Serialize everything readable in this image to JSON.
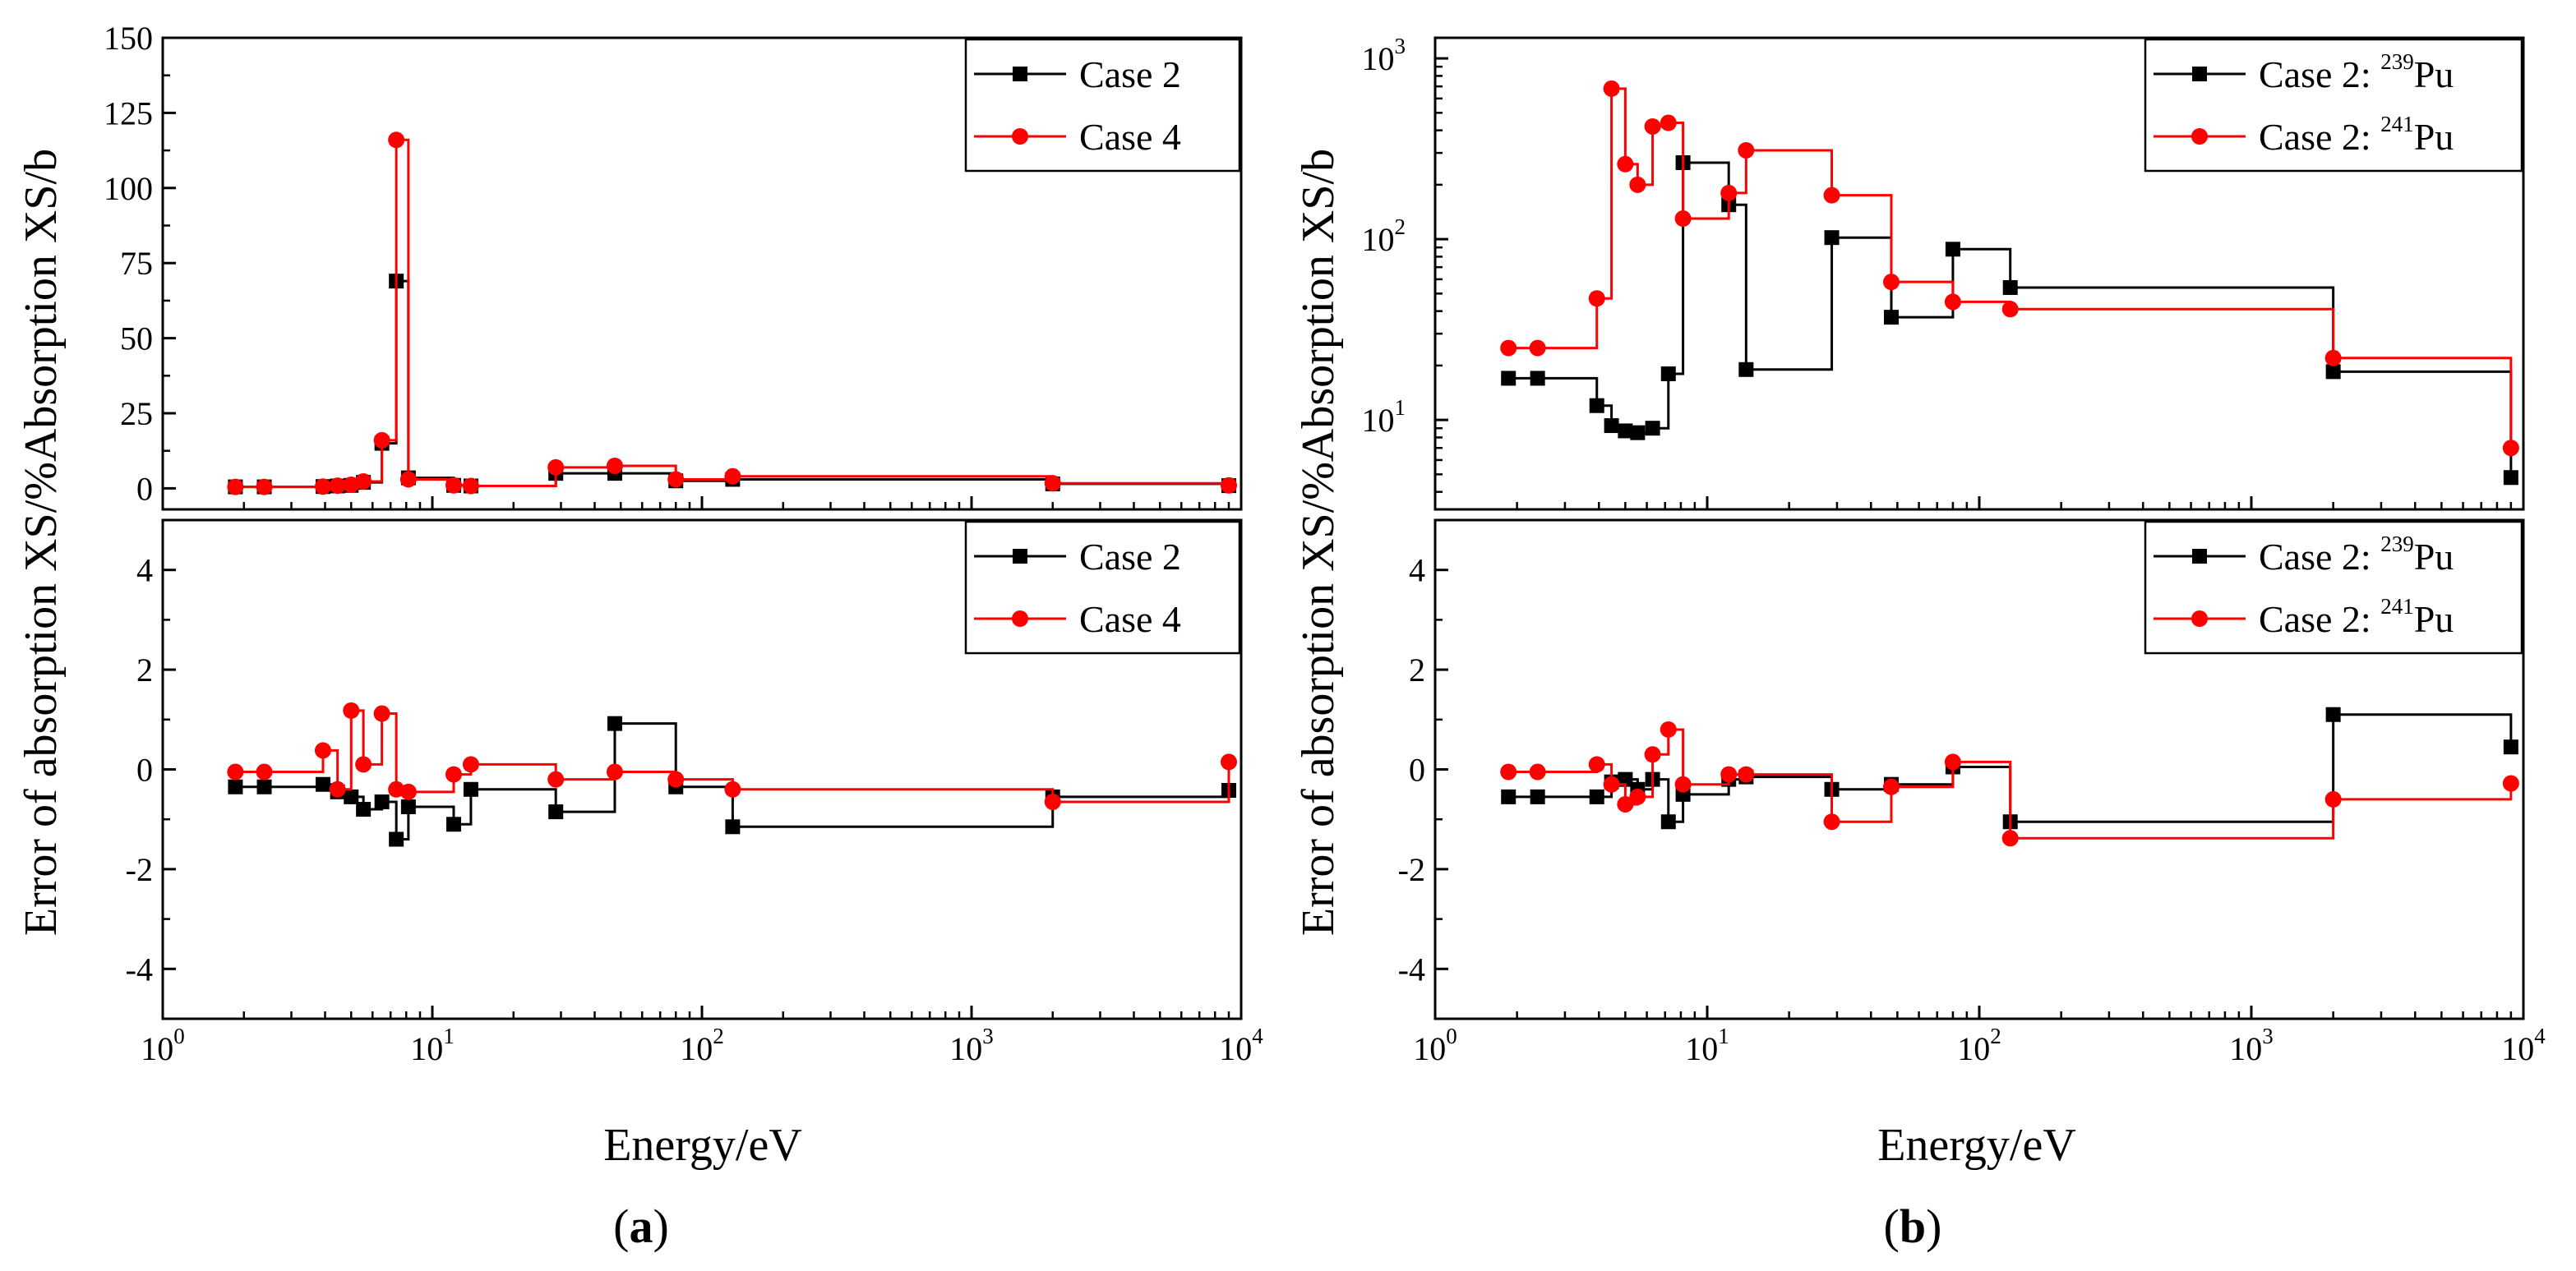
{
  "figure": {
    "ylabel_top": "Absorption XS/b",
    "ylabel_separator": "/%",
    "ylabel_bottom": "Error of absorption XS",
    "xlabel": "Energy/eV",
    "labels": {
      "a": {
        "open": "(",
        "letter": "a",
        "close": ")"
      },
      "b": {
        "open": "(",
        "letter": "b",
        "close": ")"
      }
    },
    "x_ticks": [
      {
        "base": "10",
        "exp": "0"
      },
      {
        "base": "10",
        "exp": "1"
      },
      {
        "base": "10",
        "exp": "2"
      },
      {
        "base": "10",
        "exp": "3"
      },
      {
        "base": "10",
        "exp": "4"
      }
    ]
  },
  "colors": {
    "black": "#000000",
    "red": "#ff0000"
  },
  "chart_data": [
    {
      "id": "a-top",
      "type": "line",
      "xscale": "log",
      "xlim": [
        1,
        10000
      ],
      "ylim": [
        -7,
        150
      ],
      "yticks": [
        0,
        25,
        50,
        75,
        100,
        125,
        150
      ],
      "yticklabels": [
        "0",
        "25",
        "50",
        "75",
        "100",
        "125",
        "150"
      ],
      "legend": "top-right",
      "series": [
        {
          "name": "Case 2",
          "color": "black",
          "marker": "square",
          "x": [
            1.86,
            2.38,
            3.93,
            4.45,
            5.0,
            5.55,
            6.5,
            7.35,
            8.15,
            12.0,
            13.9,
            28.7,
            47.5,
            80.0,
            130.0,
            2000.0,
            9000.0
          ],
          "y": [
            0.5,
            0.5,
            0.6,
            0.8,
            1.0,
            2.0,
            15,
            69,
            3.5,
            1.0,
            0.8,
            5.0,
            5.0,
            2.5,
            3.0,
            1.5,
            0.9
          ]
        },
        {
          "name": "Case 4",
          "color": "red",
          "marker": "circle",
          "x": [
            1.86,
            2.38,
            3.93,
            4.45,
            5.0,
            5.55,
            6.5,
            7.35,
            8.15,
            12.0,
            13.9,
            28.7,
            47.5,
            80.0,
            130.0,
            2000.0,
            9000.0
          ],
          "y": [
            0.5,
            0.5,
            0.6,
            0.9,
            1.2,
            2.3,
            16,
            116,
            3.0,
            1.0,
            0.8,
            7.0,
            7.5,
            3.0,
            4.0,
            1.7,
            1.0
          ]
        }
      ]
    },
    {
      "id": "a-bottom",
      "type": "line",
      "xscale": "log",
      "xlim": [
        1,
        10000
      ],
      "ylim": [
        -5,
        5
      ],
      "yticks": [
        -4,
        -2,
        0,
        2,
        4
      ],
      "yticklabels": [
        "-4",
        "-2",
        "0",
        "2",
        "4"
      ],
      "legend": "top-right",
      "series": [
        {
          "name": "Case 2",
          "color": "black",
          "marker": "square",
          "x": [
            1.86,
            2.38,
            3.93,
            4.45,
            5.0,
            5.55,
            6.5,
            7.35,
            8.15,
            12.0,
            13.9,
            28.7,
            47.5,
            80.0,
            130.0,
            2000.0,
            9000.0
          ],
          "y": [
            -0.35,
            -0.35,
            -0.3,
            -0.45,
            -0.55,
            -0.8,
            -0.65,
            -1.4,
            -0.75,
            -1.1,
            -0.4,
            -0.85,
            0.92,
            -0.35,
            -1.15,
            -0.55,
            -0.42
          ]
        },
        {
          "name": "Case 4",
          "color": "red",
          "marker": "circle",
          "x": [
            1.86,
            2.38,
            3.93,
            4.45,
            5.0,
            5.55,
            6.5,
            7.35,
            8.15,
            12.0,
            13.9,
            28.7,
            47.5,
            80.0,
            130.0,
            2000.0,
            9000.0
          ],
          "y": [
            -0.05,
            -0.05,
            0.38,
            -0.4,
            1.18,
            0.1,
            1.12,
            -0.4,
            -0.45,
            -0.1,
            0.1,
            -0.2,
            -0.05,
            -0.2,
            -0.4,
            -0.65,
            0.15
          ]
        }
      ]
    },
    {
      "id": "b-top",
      "type": "line",
      "xscale": "log",
      "yscale": "log",
      "xlim": [
        1,
        10000
      ],
      "ylim": [
        3.2,
        1300
      ],
      "yticks": [
        10,
        100,
        1000
      ],
      "yticklabels": [
        {
          "base": "10",
          "exp": "1"
        },
        {
          "base": "10",
          "exp": "2"
        },
        {
          "base": "10",
          "exp": "3"
        }
      ],
      "legend": "top-right",
      "series": [
        {
          "name": "Case 2: ",
          "nuclide": {
            "mass": "239",
            "symbol": "Pu"
          },
          "color": "black",
          "marker": "square",
          "x": [
            1.86,
            2.38,
            3.93,
            4.45,
            5.0,
            5.55,
            6.3,
            7.2,
            8.15,
            12.0,
            13.9,
            28.7,
            47.5,
            80.0,
            130.0,
            2000.0,
            9000.0
          ],
          "y": [
            17,
            17,
            12,
            9.3,
            8.7,
            8.5,
            9.0,
            18,
            265,
            155,
            19,
            102,
            37,
            88,
            54,
            18.5,
            4.8
          ]
        },
        {
          "name": "Case 2: ",
          "nuclide": {
            "mass": "241",
            "symbol": "Pu"
          },
          "color": "red",
          "marker": "circle",
          "x": [
            1.86,
            2.38,
            3.93,
            4.45,
            5.0,
            5.55,
            6.3,
            7.2,
            8.15,
            12.0,
            13.9,
            28.7,
            47.5,
            80.0,
            130.0,
            2000.0,
            9000.0
          ],
          "y": [
            25,
            25,
            47,
            680,
            260,
            200,
            420,
            440,
            130,
            180,
            310,
            175,
            58,
            45,
            41,
            22,
            7
          ]
        }
      ]
    },
    {
      "id": "b-bottom",
      "type": "line",
      "xscale": "log",
      "xlim": [
        1,
        10000
      ],
      "ylim": [
        -5,
        5
      ],
      "yticks": [
        -4,
        -2,
        0,
        2,
        4
      ],
      "yticklabels": [
        "-4",
        "-2",
        "0",
        "2",
        "4"
      ],
      "legend": "top-right",
      "series": [
        {
          "name": "Case 2: ",
          "nuclide": {
            "mass": "239",
            "symbol": "Pu"
          },
          "color": "black",
          "marker": "square",
          "x": [
            1.86,
            2.38,
            3.93,
            4.45,
            5.0,
            5.55,
            6.3,
            7.2,
            8.15,
            12.0,
            13.9,
            28.7,
            47.5,
            80.0,
            130.0,
            2000.0,
            9000.0
          ],
          "y": [
            -0.55,
            -0.55,
            -0.55,
            -0.25,
            -0.2,
            -0.4,
            -0.2,
            -1.05,
            -0.5,
            -0.2,
            -0.15,
            -0.4,
            -0.3,
            0.05,
            -1.05,
            1.1,
            0.45
          ]
        },
        {
          "name": "Case 2: ",
          "nuclide": {
            "mass": "241",
            "symbol": "Pu"
          },
          "color": "red",
          "marker": "circle",
          "x": [
            1.86,
            2.38,
            3.93,
            4.45,
            5.0,
            5.55,
            6.3,
            7.2,
            8.15,
            12.0,
            13.9,
            28.7,
            47.5,
            80.0,
            130.0,
            2000.0,
            9000.0
          ],
          "y": [
            -0.05,
            -0.05,
            0.1,
            -0.3,
            -0.7,
            -0.55,
            0.3,
            0.8,
            -0.3,
            -0.1,
            -0.1,
            -1.05,
            -0.35,
            0.15,
            -1.38,
            -0.6,
            -0.28
          ]
        }
      ]
    }
  ]
}
